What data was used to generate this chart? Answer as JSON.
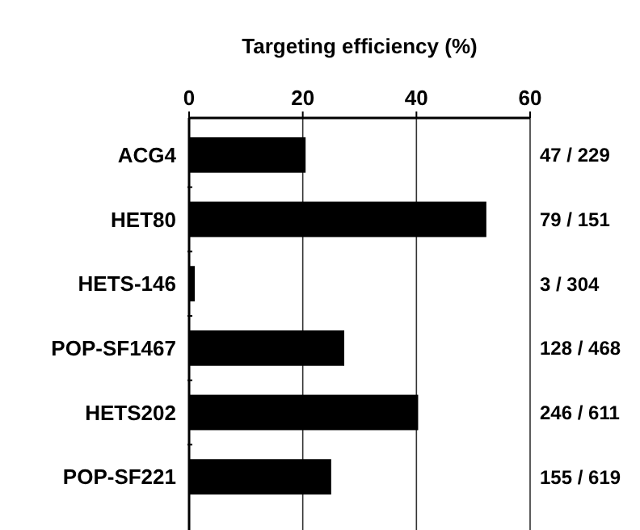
{
  "chart_data": {
    "type": "bar",
    "orientation": "horizontal",
    "xlabel": "Targeting efficiency (%)",
    "categories": [
      "ACG4",
      "HET80",
      "HETS-146",
      "POP-SF1467",
      "HETS202",
      "POP-SF221"
    ],
    "values": [
      20.5,
      52.3,
      1,
      27.3,
      40.3,
      25.0
    ],
    "annotations": [
      "47 / 229",
      "79 / 151",
      "3 / 304",
      "128 / 468",
      "246 / 611",
      "155 / 619"
    ],
    "color": "#000000",
    "xlim": [
      0,
      60
    ],
    "xticks": [
      0,
      20,
      40,
      60
    ],
    "grid": "x"
  }
}
